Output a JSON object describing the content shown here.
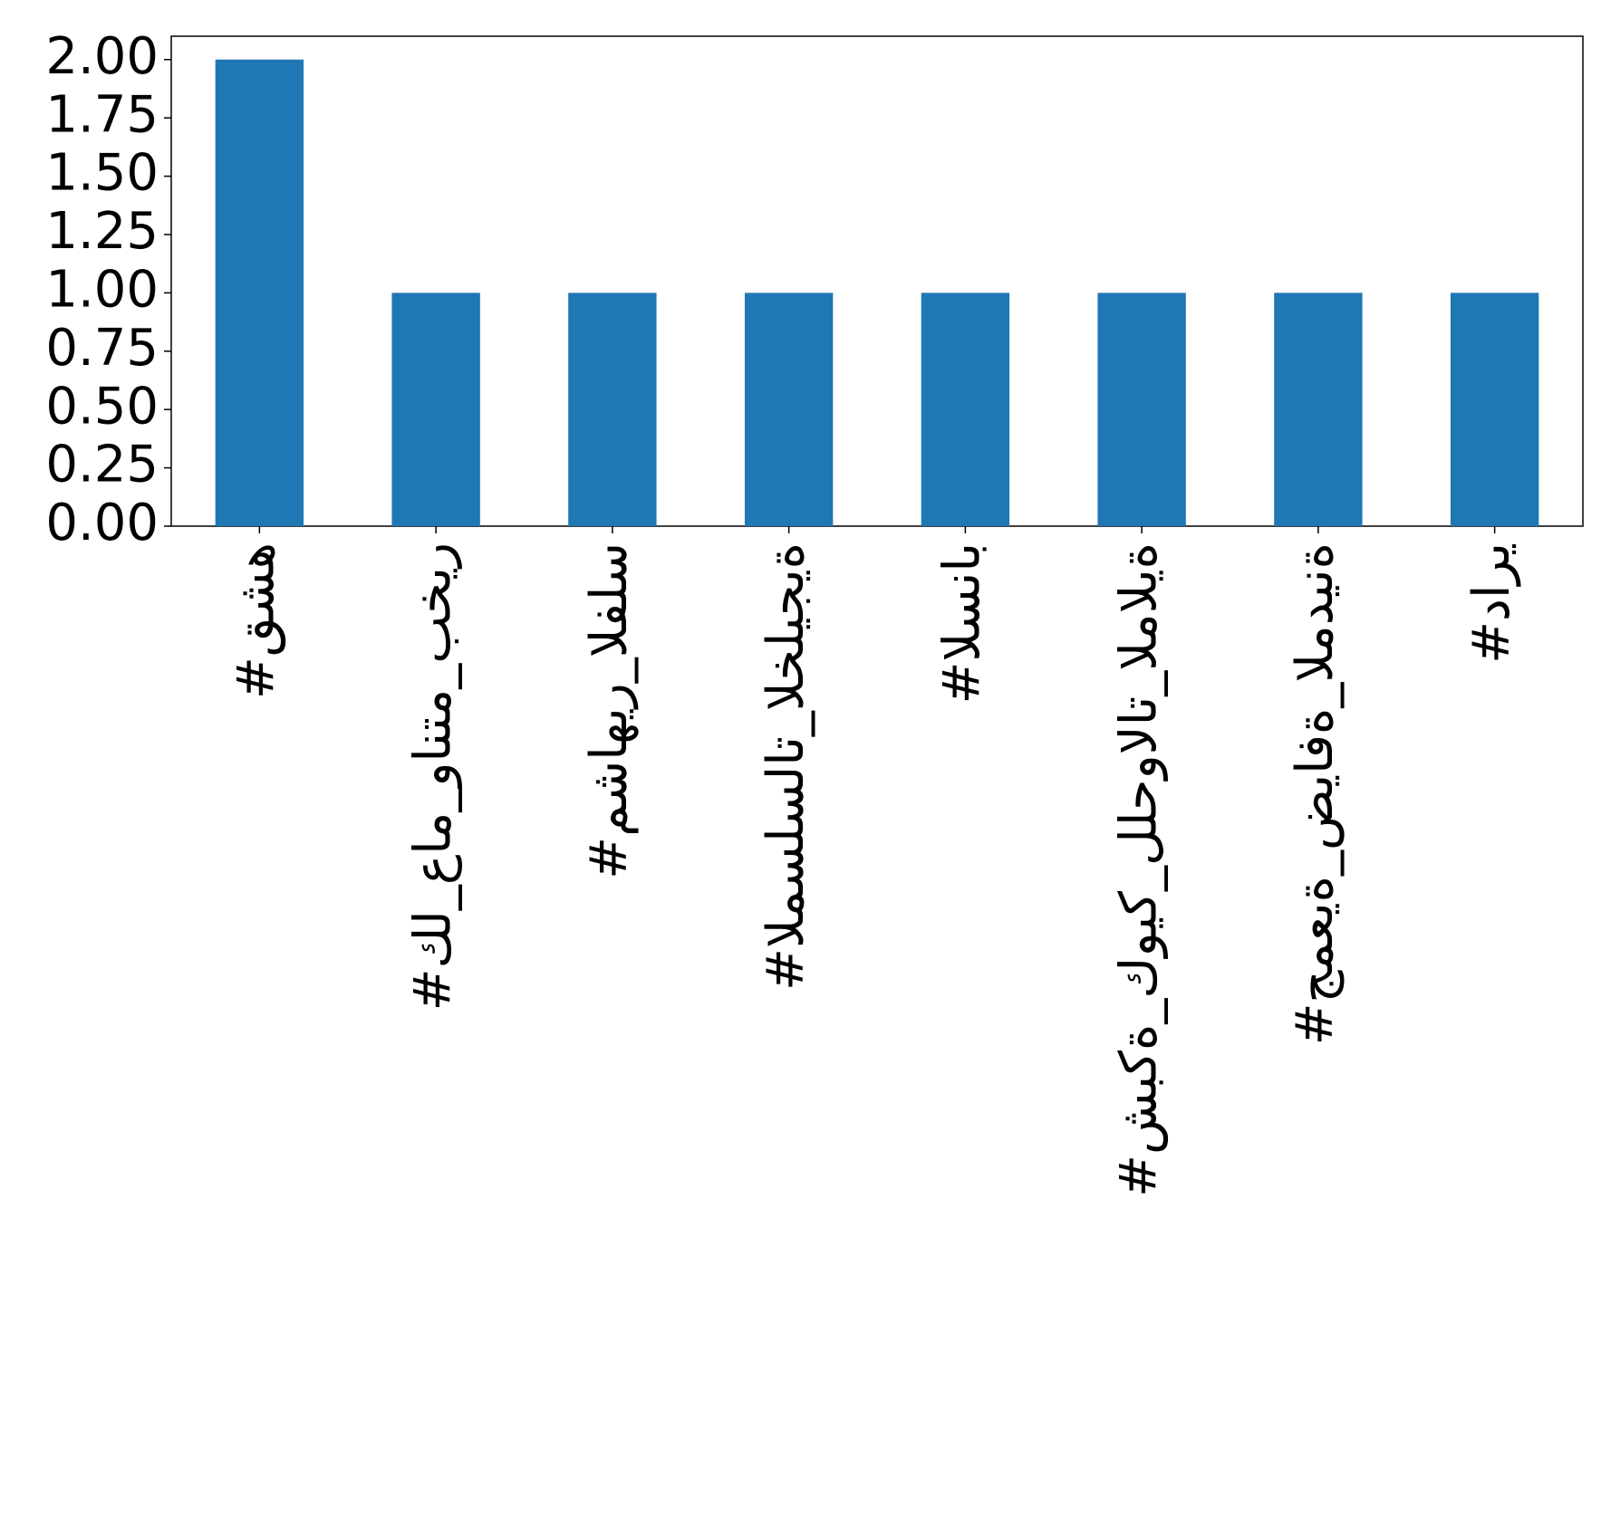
{
  "chart_data": {
    "type": "bar",
    "categories": [
      "#قشه",
      "#كل_عام_وانتم_بخير",
      "#مشاهير_الفلس",
      "#المسلسلات_الخليجية",
      "#السناب",
      "#شبكة_كويك_للحوالات_المالية",
      "#جمعية_ضيافة_المدينة",
      "#داري"
    ],
    "values": [
      2,
      1,
      1,
      1,
      1,
      1,
      1,
      1
    ],
    "color": "#1f77b4",
    "ylim": [
      0,
      2.1
    ],
    "yticks": [
      {
        "value": 0,
        "label": "0.00"
      },
      {
        "value": 0.25,
        "label": "0.25"
      },
      {
        "value": 0.5,
        "label": "0.50"
      },
      {
        "value": 0.75,
        "label": "0.75"
      },
      {
        "value": 1,
        "label": "1.00"
      },
      {
        "value": 1.25,
        "label": "1.25"
      },
      {
        "value": 1.5,
        "label": "1.50"
      },
      {
        "value": 1.75,
        "label": "1.75"
      },
      {
        "value": 2,
        "label": "2.00"
      }
    ],
    "grid": false
  }
}
